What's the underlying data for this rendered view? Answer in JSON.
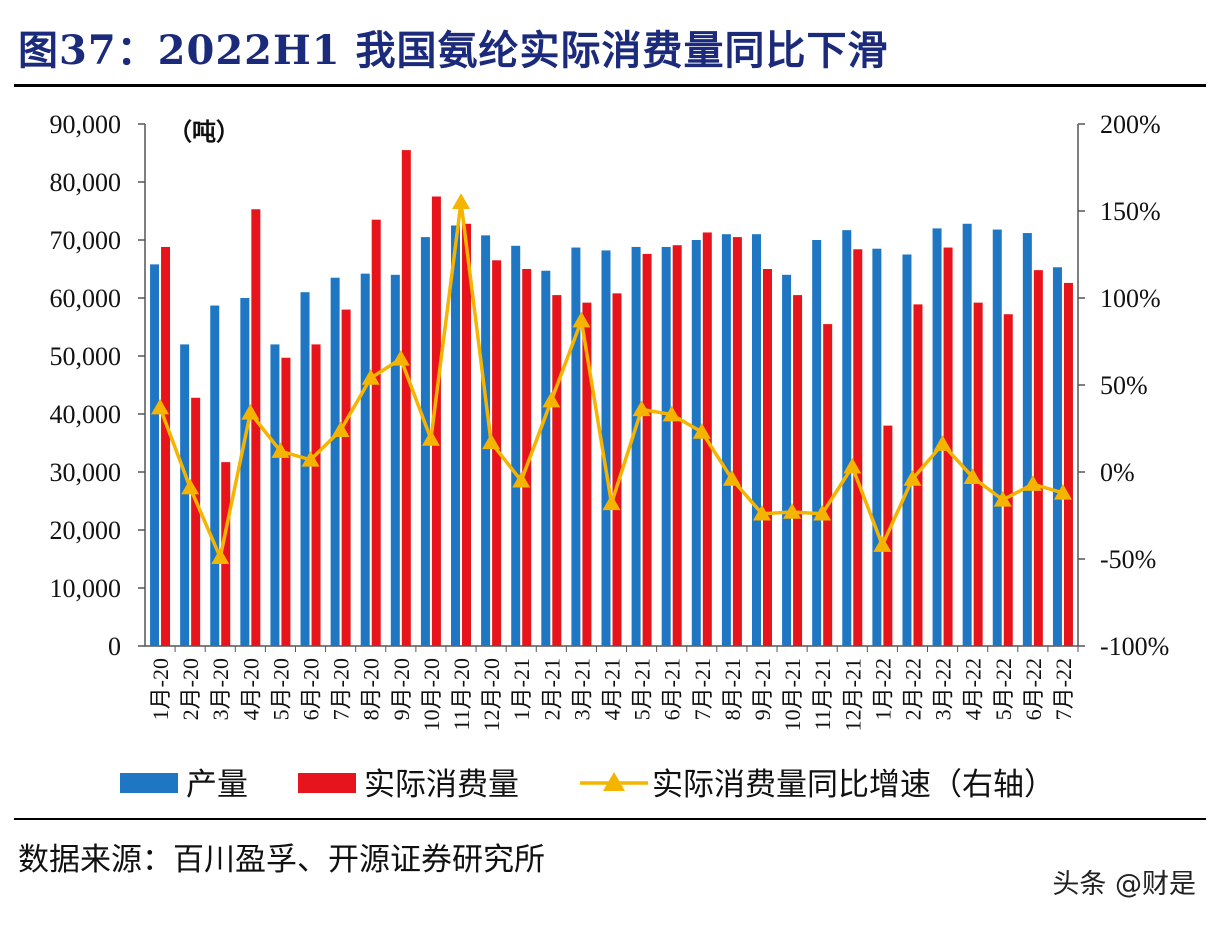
{
  "title": "图37：2022H1 我国氨纶实际消费量同比下滑",
  "source": "数据来源：百川盈孚、开源证券研究所",
  "watermark": "头条 @财是",
  "colors": {
    "production": "#1f77c4",
    "consumption": "#e8141b",
    "yoy": "#f4b400",
    "title": "#1b2a7a"
  },
  "chart_data": {
    "type": "bar",
    "unit_label": "（吨）",
    "categories": [
      "1月-20",
      "2月-20",
      "3月-20",
      "4月-20",
      "5月-20",
      "6月-20",
      "7月-20",
      "8月-20",
      "9月-20",
      "10月-20",
      "11月-20",
      "12月-20",
      "1月-21",
      "2月-21",
      "3月-21",
      "4月-21",
      "5月-21",
      "6月-21",
      "7月-21",
      "8月-21",
      "9月-21",
      "10月-21",
      "11月-21",
      "12月-21",
      "1月-22",
      "2月-22",
      "3月-22",
      "4月-22",
      "5月-22",
      "6月-22",
      "7月-22"
    ],
    "series": [
      {
        "name": "产量",
        "kind": "bar",
        "axis": "left",
        "values": [
          65800,
          52000,
          58700,
          60000,
          52000,
          61000,
          63500,
          64200,
          64000,
          70500,
          72500,
          70800,
          69000,
          64700,
          68700,
          68200,
          68800,
          68800,
          70000,
          71000,
          71000,
          64000,
          70000,
          71700,
          68500,
          67500,
          72000,
          72800,
          71800,
          71200,
          65300
        ]
      },
      {
        "name": "实际消费量",
        "kind": "bar",
        "axis": "left",
        "values": [
          68800,
          42800,
          31700,
          75300,
          49700,
          52000,
          58000,
          73500,
          85500,
          77500,
          72800,
          66500,
          65000,
          60500,
          59200,
          60800,
          67600,
          69100,
          71300,
          70500,
          65000,
          60500,
          55500,
          68400,
          38000,
          58900,
          68700,
          59200,
          57200,
          64800,
          62600
        ]
      },
      {
        "name": "实际消费量同比增速（右轴）",
        "kind": "line",
        "axis": "right",
        "values": [
          37,
          -9,
          -49,
          34,
          12,
          7,
          24,
          54,
          65,
          19,
          155,
          17,
          -5,
          41,
          87,
          -18,
          36,
          33,
          23,
          -4,
          -24,
          -23,
          -24,
          3,
          -42,
          -4,
          16,
          -3,
          -16,
          -7,
          -12
        ]
      }
    ],
    "y_left": {
      "min": 0,
      "max": 90000,
      "step": 10000,
      "tick_labels": [
        "0",
        "10,000",
        "20,000",
        "30,000",
        "40,000",
        "50,000",
        "60,000",
        "70,000",
        "80,000",
        "90,000"
      ]
    },
    "y_right": {
      "min": -100,
      "max": 200,
      "step": 50,
      "tick_labels": [
        "-100%",
        "-50%",
        "0%",
        "50%",
        "100%",
        "150%",
        "200%"
      ]
    },
    "legend": [
      "产量",
      "实际消费量",
      "实际消费量同比增速（右轴）"
    ],
    "legend_position": "bottom"
  }
}
